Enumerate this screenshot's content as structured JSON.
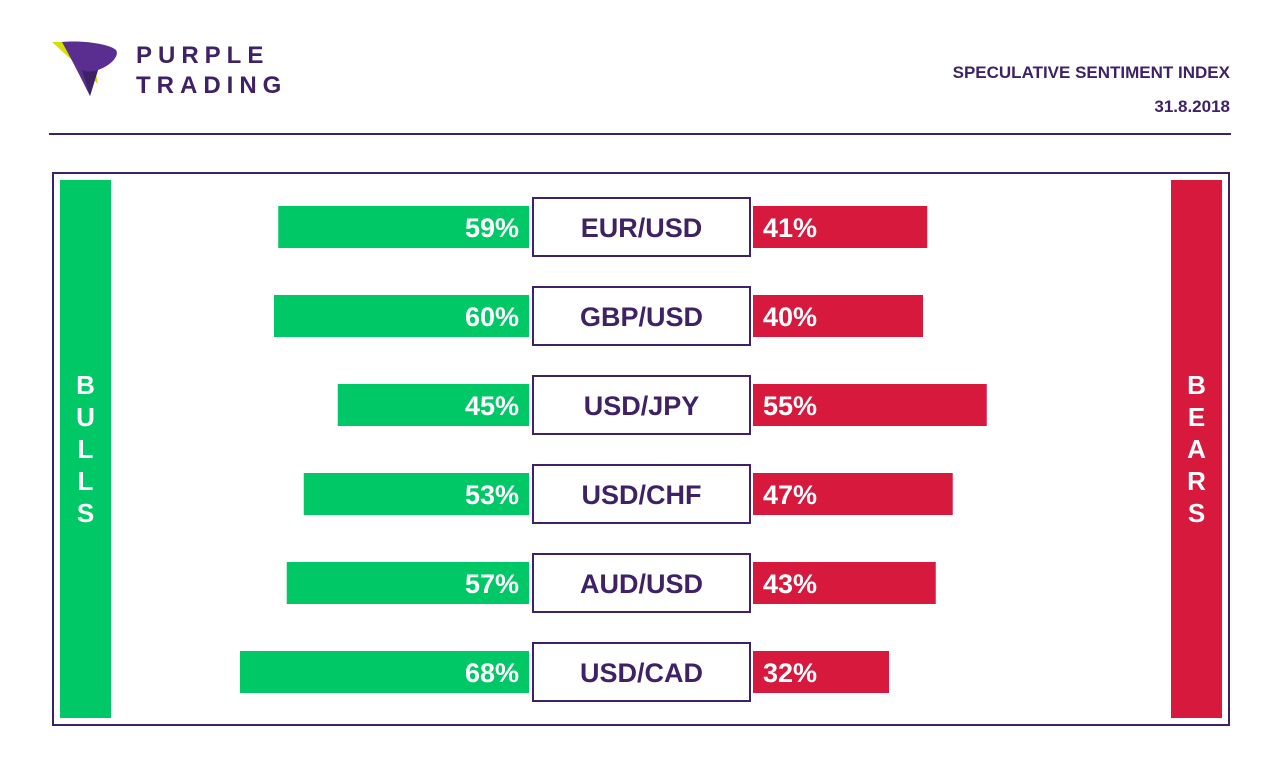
{
  "brand": {
    "name_line1": "PURPLE",
    "name_line2": "TRADING",
    "colors": {
      "primary": "#3f2266",
      "accent_yellow": "#d6e000"
    }
  },
  "header": {
    "title": "SPECULATIVE SENTIMENT INDEX",
    "date": "31.8.2018"
  },
  "side_labels": {
    "bulls": "BULLS",
    "bears": "BEARS"
  },
  "colors": {
    "bulls": "#00c867",
    "bears": "#d7193e",
    "frame": "#3f2266"
  },
  "chart_data": {
    "type": "bar",
    "orientation": "horizontal-diverging",
    "categories": [
      "EUR/USD",
      "GBP/USD",
      "USD/JPY",
      "USD/CHF",
      "AUD/USD",
      "USD/CAD"
    ],
    "series": [
      {
        "name": "BULLS",
        "values": [
          59,
          60,
          45,
          53,
          57,
          68
        ]
      },
      {
        "name": "BEARS",
        "values": [
          41,
          40,
          55,
          47,
          43,
          32
        ]
      }
    ],
    "value_unit": "%",
    "title": "SPECULATIVE SENTIMENT INDEX",
    "xlabel": "",
    "ylabel": "",
    "xlim": [
      0,
      100
    ],
    "grid": false,
    "legend": "side-bars"
  }
}
